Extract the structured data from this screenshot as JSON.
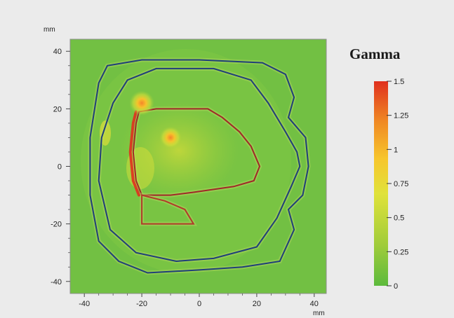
{
  "chart_data": {
    "type": "heatmap",
    "xunit": "mm",
    "yunit": "mm",
    "xlim": [
      -42,
      42
    ],
    "ylim": [
      -42,
      42
    ],
    "xticks": [
      -40,
      -20,
      0,
      20,
      40
    ],
    "yticks": [
      40,
      20,
      0,
      -20,
      -40
    ],
    "colorbar": {
      "title": "Gamma",
      "range": [
        0,
        1.5
      ],
      "ticks": [
        "1.5",
        "1.25",
        "1",
        "0.75",
        "0.5",
        "0.25",
        "0"
      ],
      "colors": [
        "#5cba3c",
        "#a0cc3a",
        "#e0e23a",
        "#f7c62c",
        "#f08a24",
        "#e0301e"
      ]
    },
    "background_gamma": 0.2,
    "hotspots": [
      {
        "x": -10,
        "y": 10,
        "gamma": 1.0
      },
      {
        "x": -20,
        "y": 22,
        "gamma": 1.3
      }
    ],
    "contours": [
      {
        "name": "outer",
        "color": "#1f3f7a",
        "points": [
          [
            -35,
            29
          ],
          [
            -32,
            35
          ],
          [
            -20,
            37
          ],
          [
            0,
            37
          ],
          [
            22,
            36
          ],
          [
            30,
            32
          ],
          [
            33,
            24
          ],
          [
            31,
            17
          ],
          [
            37,
            10
          ],
          [
            38,
            0
          ],
          [
            36,
            -10
          ],
          [
            31,
            -15
          ],
          [
            33,
            -22
          ],
          [
            28,
            -33
          ],
          [
            15,
            -35
          ],
          [
            0,
            -36
          ],
          [
            -18,
            -37
          ],
          [
            -28,
            -33
          ],
          [
            -35,
            -26
          ],
          [
            -38,
            -10
          ],
          [
            -38,
            10
          ]
        ]
      },
      {
        "name": "middle",
        "color": "#1f3f7a",
        "points": [
          [
            -25,
            30
          ],
          [
            -15,
            34
          ],
          [
            5,
            34
          ],
          [
            18,
            30
          ],
          [
            24,
            22
          ],
          [
            30,
            12
          ],
          [
            34,
            5
          ],
          [
            35,
            0
          ],
          [
            32,
            -7
          ],
          [
            27,
            -18
          ],
          [
            20,
            -28
          ],
          [
            5,
            -32
          ],
          [
            -8,
            -33
          ],
          [
            -22,
            -30
          ],
          [
            -31,
            -22
          ],
          [
            -35,
            -5
          ],
          [
            -34,
            10
          ],
          [
            -30,
            22
          ]
        ]
      },
      {
        "name": "tumor-outline",
        "color": "#a02828",
        "points": [
          [
            -21,
            19
          ],
          [
            -15,
            20
          ],
          [
            -5,
            20
          ],
          [
            3,
            20
          ],
          [
            8,
            17
          ],
          [
            14,
            12
          ],
          [
            18,
            7
          ],
          [
            21,
            0
          ],
          [
            19,
            -5
          ],
          [
            12,
            -7
          ],
          [
            5,
            -8
          ],
          [
            -2,
            -9
          ],
          [
            -10,
            -10
          ],
          [
            -20,
            -10
          ],
          [
            -22,
            -5
          ],
          [
            -23,
            5
          ],
          [
            -22,
            15
          ]
        ]
      },
      {
        "name": "inner-fill",
        "color": "#b13a2a",
        "points": [
          [
            -20,
            -10
          ],
          [
            -12,
            -12
          ],
          [
            -5,
            -15
          ],
          [
            -2,
            -20
          ],
          [
            -10,
            -20
          ],
          [
            -20,
            -20
          ],
          [
            -20,
            -15
          ]
        ]
      }
    ],
    "grid": false
  }
}
